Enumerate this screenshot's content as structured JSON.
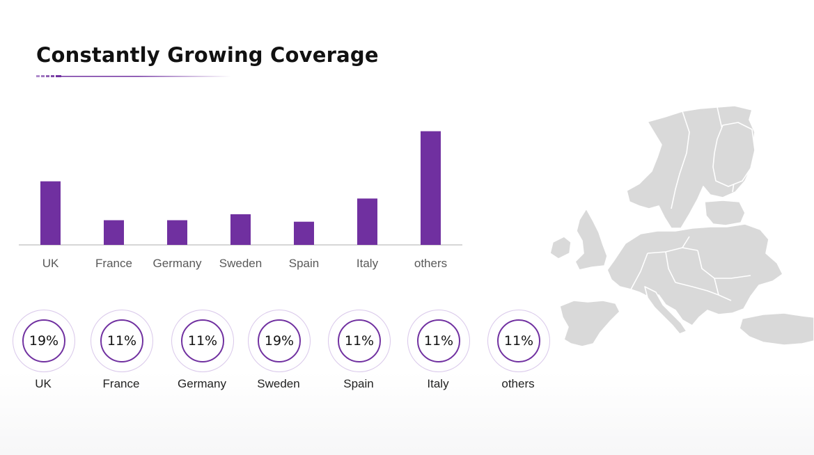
{
  "slide": {
    "title": "Constantly Growing Coverage",
    "accent_color": "#7030a0"
  },
  "chart_data": {
    "type": "bar",
    "title": "",
    "categories": [
      "UK",
      "France",
      "Germany",
      "Sweden",
      "Spain",
      "Italy",
      "others"
    ],
    "values": [
      85,
      33,
      33,
      41,
      31,
      62,
      152
    ],
    "ylim": [
      0,
      160
    ],
    "grid": false,
    "bar_color": "#7030a0",
    "axis_color": "#c8c8c8",
    "label_color": "#595959"
  },
  "badges": [
    {
      "percent": "19%",
      "label": "UK"
    },
    {
      "percent": "11%",
      "label": "France"
    },
    {
      "percent": "11%",
      "label": "Germany"
    },
    {
      "percent": "19%",
      "label": "Sweden"
    },
    {
      "percent": "11%",
      "label": "Spain"
    },
    {
      "percent": "11%",
      "label": "Italy"
    },
    {
      "percent": "11%",
      "label": "others"
    }
  ],
  "map": {
    "icon": "europe-map-icon",
    "color": "#d9d9d9"
  }
}
